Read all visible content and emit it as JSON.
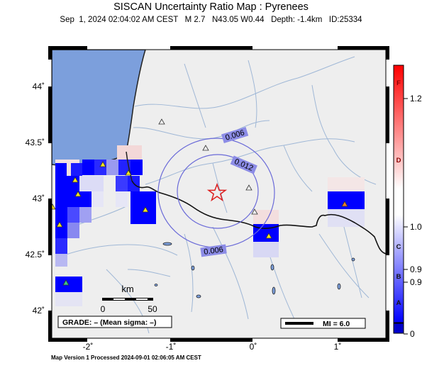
{
  "title": "SISCAN Uncertainty Ratio Map : Pyrenees",
  "subtitle": "Sep  1, 2024 02:04:02 AM CEST   M 2.7   N43.05 W0.44   Depth: -1.4km   ID:25334",
  "footer": "Map Version 1 Processed 2024-09-01 02:06:05 AM CEST",
  "map": {
    "lat_labels": [
      "44˚",
      "43.5˚",
      "43˚",
      "42.5˚",
      "42˚"
    ],
    "lon_labels": [
      "-2˚",
      "-1˚",
      "0˚",
      "1˚"
    ],
    "contour_labels": [
      "0.006",
      "0.012",
      "0.006"
    ],
    "scale_bar": {
      "unit": "km",
      "start": "0",
      "end": "50"
    },
    "grade_box": "GRADE: – (Mean sigma: –)",
    "mi_box": "MI = 6.0",
    "epicenter_marker": "red-star-icon",
    "station_marker": "triangle-icon"
  },
  "colorbar": {
    "grade_letters": [
      "F",
      "D",
      "C",
      "B",
      "A"
    ],
    "values": [
      "1.2",
      "1.0",
      "0.9",
      "0.9",
      "0"
    ],
    "colors": {
      "low": "#0000ff",
      "mid": "#ffffff",
      "high": "#ff0000",
      "floor": "#0000cc"
    }
  },
  "colors": {
    "sea": "#7c9fdc",
    "land": "#eeeeee",
    "rivers": "#9fb7d6",
    "contours": "#6a6ad8"
  }
}
